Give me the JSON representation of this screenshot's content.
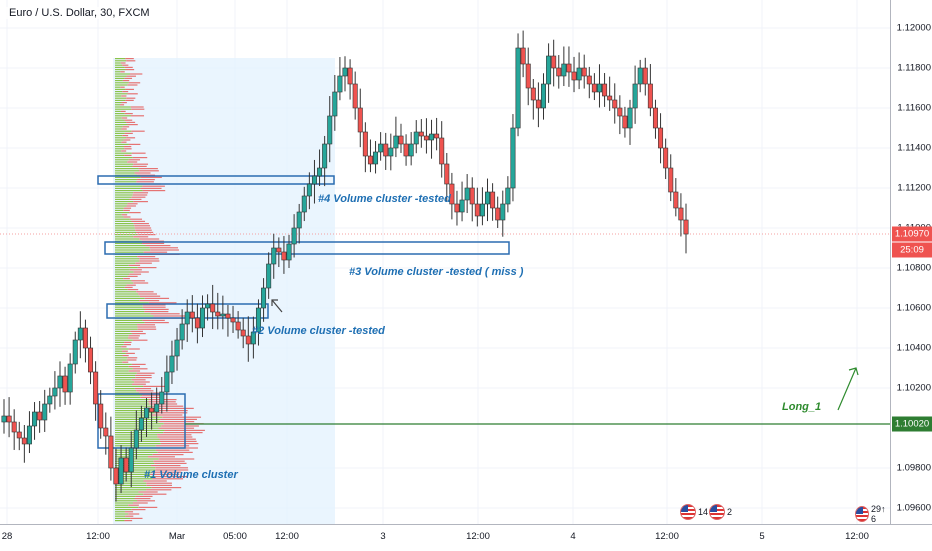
{
  "symbol_title": "Euro / U.S. Dollar, 30, FXCM",
  "price_axis": {
    "ticks": [
      "1.12000",
      "1.11800",
      "1.11600",
      "1.11400",
      "1.11200",
      "1.11000",
      "1.10800",
      "1.10600",
      "1.10400",
      "1.10200",
      "1.09800",
      "1.09600"
    ],
    "current_price": "1.10970",
    "countdown": "25:09",
    "long_level": "1.10020",
    "current_color": "#ef5350",
    "countdown_color": "#ef5350",
    "long_color": "#2e7d32"
  },
  "time_axis": {
    "labels": [
      "28",
      "12:00",
      "Mar",
      "05:00",
      "12:00",
      "3",
      "12:00",
      "4",
      "12:00",
      "5",
      "12:00"
    ]
  },
  "annotations": {
    "cluster1": "#1 Volume cluster",
    "cluster2": "#2 Volume cluster -tested",
    "cluster3": "#3 Volume cluster -tested ( miss )",
    "cluster4": "#4 Volume cluster -tested",
    "long_label": "Long_1"
  },
  "events": [
    {
      "label": "14↑ 2"
    },
    {
      "label": "2"
    },
    {
      "label": "29↑ 6"
    }
  ],
  "colors": {
    "up": "#26a69a",
    "down": "#ef5350",
    "cluster_box": "#2b6cb0",
    "long_line": "#2e7d32",
    "profile_bg": "#e3f2fd",
    "volume_up": "#8bc34a",
    "volume_down": "#e57373"
  },
  "chart_data": {
    "type": "candlestick",
    "title": "Euro / U.S. Dollar, 30, FXCM",
    "ylim": [
      1.0952,
      1.1214
    ],
    "x": [
      "28",
      "12:00",
      "Mar",
      "05:00",
      "12:00",
      "3",
      "12:00",
      "4",
      "12:00",
      "5",
      "12:00"
    ],
    "key_levels": {
      "current": 1.1097,
      "long_entry": 1.1002
    },
    "volume_clusters": [
      {
        "label": "#1 Volume cluster",
        "low": 1.099,
        "high": 1.1017
      },
      {
        "label": "#2 Volume cluster -tested",
        "low": 1.1055,
        "high": 1.1062
      },
      {
        "label": "#3 Volume cluster -tested ( miss )",
        "low": 1.1087,
        "high": 1.1093
      },
      {
        "label": "#4 Volume cluster -tested",
        "low": 1.1122,
        "high": 1.1126
      }
    ],
    "closes": [
      1.1006,
      1.1003,
      1.0998,
      1.0995,
      1.0992,
      1.1001,
      1.1008,
      1.1004,
      1.1012,
      1.1016,
      1.102,
      1.1026,
      1.1018,
      1.1032,
      1.1044,
      1.105,
      1.104,
      1.1028,
      1.1012,
      1.1,
      1.0996,
      1.098,
      1.0972,
      1.0985,
      1.0978,
      1.099,
      1.0999,
      1.1005,
      1.101,
      1.1008,
      1.1012,
      1.1018,
      1.1028,
      1.1036,
      1.1044,
      1.1052,
      1.1058,
      1.1055,
      1.105,
      1.106,
      1.1062,
      1.1058,
      1.1056,
      1.1057,
      1.1055,
      1.1053,
      1.1049,
      1.1046,
      1.1042,
      1.1048,
      1.106,
      1.107,
      1.1082,
      1.109,
      1.1088,
      1.1084,
      1.1092,
      1.11,
      1.1108,
      1.1116,
      1.1122,
      1.1126,
      1.113,
      1.1142,
      1.1156,
      1.1168,
      1.1176,
      1.118,
      1.1172,
      1.116,
      1.1148,
      1.1136,
      1.1132,
      1.1138,
      1.1142,
      1.1136,
      1.114,
      1.1146,
      1.1142,
      1.1136,
      1.1142,
      1.1148,
      1.1146,
      1.1144,
      1.1147,
      1.1145,
      1.1132,
      1.1122,
      1.1112,
      1.1108,
      1.1114,
      1.112,
      1.1112,
      1.1106,
      1.1112,
      1.1118,
      1.111,
      1.1104,
      1.1112,
      1.112,
      1.115,
      1.119,
      1.1182,
      1.117,
      1.1164,
      1.116,
      1.1172,
      1.1186,
      1.118,
      1.1176,
      1.1182,
      1.1178,
      1.1174,
      1.118,
      1.1176,
      1.1172,
      1.1168,
      1.1172,
      1.1166,
      1.1164,
      1.116,
      1.1156,
      1.115,
      1.116,
      1.1172,
      1.118,
      1.1172,
      1.116,
      1.115,
      1.114,
      1.113,
      1.1118,
      1.111,
      1.1104,
      1.1097
    ]
  }
}
